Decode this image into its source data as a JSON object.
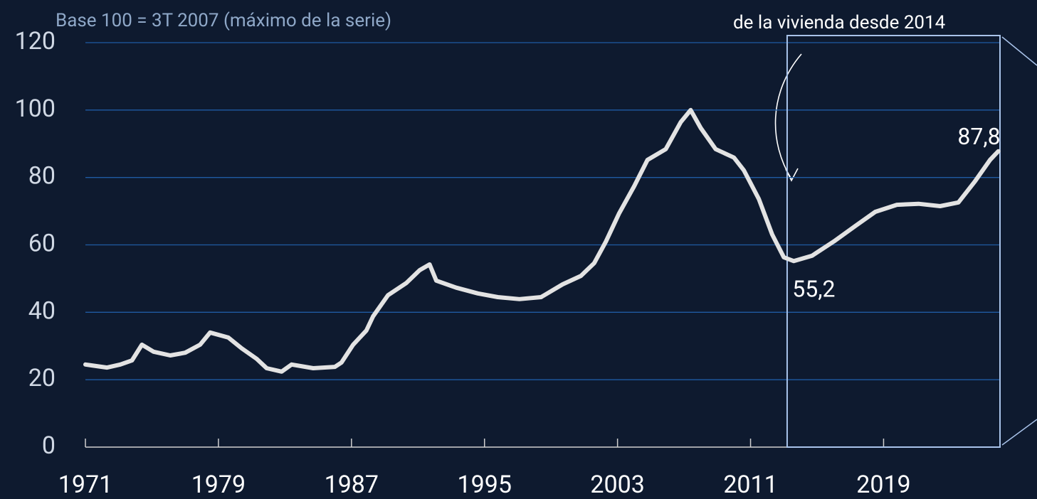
{
  "chart_data": {
    "type": "line",
    "subtitle": "Base 100 = 3T 2007 (máximo de la serie)",
    "annotation_top": "de la vivienda desde 2014",
    "xlim": [
      1971,
      2026
    ],
    "xticks": [
      1971,
      1979,
      1987,
      1995,
      2003,
      2011,
      2019
    ],
    "ylim": [
      0,
      120
    ],
    "yticks": [
      0,
      20,
      40,
      60,
      80,
      100,
      120
    ],
    "grid": true,
    "highlight_x": [
      2013.2,
      2026
    ],
    "series": [
      {
        "color": "#e3e3e3",
        "x": [
          1971,
          1972.3,
          1973.1,
          1973.8,
          1974.4,
          1975.1,
          1976.1,
          1977,
          1977.9,
          1978.5,
          1979.6,
          1980.4,
          1981.3,
          1981.9,
          1982.8,
          1983.4,
          1984.7,
          1986,
          1986.4,
          1987.1,
          1987.9,
          1988.3,
          1989.2,
          1990.3,
          1991.1,
          1991.7,
          1992.1,
          1993.3,
          1994.6,
          1995.8,
          1997.1,
          1998.4,
          1999.7,
          2000.8,
          2001.6,
          2002.3,
          2003.1,
          2004,
          2004.8,
          2005.9,
          2006.8,
          2007.4,
          2008,
          2008.9,
          2010,
          2010.6,
          2011.5,
          2012.3,
          2013,
          2013.6,
          2014.7,
          2016,
          2017.3,
          2018.5,
          2019.8,
          2021.1,
          2022.4,
          2023.5,
          2024.5,
          2025.4,
          2025.9
        ],
        "values": [
          24.5,
          23.6,
          24.5,
          25.7,
          30.4,
          28.3,
          27.2,
          28,
          30.4,
          34,
          32.5,
          29.3,
          26.2,
          23.4,
          22.4,
          24.5,
          23.4,
          23.8,
          25.1,
          30.4,
          34.6,
          38.8,
          45.1,
          48.7,
          52.5,
          54.2,
          49.4,
          47.3,
          45.6,
          44.5,
          43.9,
          44.5,
          48.3,
          50.8,
          54.6,
          61,
          69.4,
          77.4,
          85.2,
          88.4,
          96.4,
          100,
          94.7,
          88.4,
          85.9,
          82.1,
          73.6,
          63.1,
          56.3,
          55.2,
          56.8,
          61,
          65.6,
          69.8,
          71.9,
          72.2,
          71.5,
          72.6,
          78.9,
          85.2,
          87.8
        ]
      }
    ],
    "point_labels": [
      {
        "index": 49,
        "label": "55,2"
      },
      {
        "index": 60,
        "label": "87,8"
      }
    ]
  }
}
